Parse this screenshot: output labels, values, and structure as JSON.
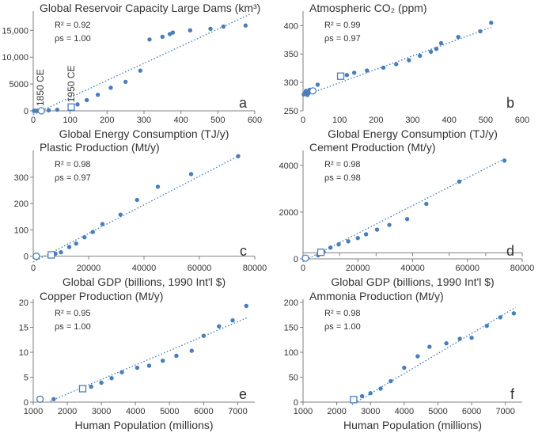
{
  "chart_data": [
    {
      "type": "scatter",
      "panel_letter": "a",
      "title": "Global Reservoir Capacity Large Dams (km³)",
      "xlabel": "Global Energy Consumption (TJ/y)",
      "ylabel": "",
      "stats": [
        "R² = 0.92",
        "ρs = 1.00"
      ],
      "xlim": [
        0,
        600
      ],
      "ylim": [
        0,
        18000
      ],
      "xticks": [
        0,
        100,
        200,
        300,
        400,
        500,
        600
      ],
      "xtick_labels": [
        "0",
        "100",
        "200",
        "300",
        "400",
        "500",
        "600"
      ],
      "yticks": [
        0,
        5000,
        10000,
        15000
      ],
      "ytick_labels": [
        "0",
        "5000",
        "10,000",
        "15,000"
      ],
      "annotations": [
        {
          "text": "1850 CE",
          "x": 19,
          "y": 0
        },
        {
          "text": "1950 CE",
          "x": 103,
          "y": 700
        }
      ],
      "points": [
        [
          2,
          0
        ],
        [
          5,
          0
        ],
        [
          8,
          0
        ],
        [
          12,
          0
        ],
        [
          15,
          0
        ],
        [
          20,
          0
        ],
        [
          25,
          0
        ],
        [
          42,
          100
        ],
        [
          65,
          200
        ],
        [
          120,
          1200
        ],
        [
          145,
          2000
        ],
        [
          175,
          3000
        ],
        [
          210,
          4300
        ],
        [
          250,
          5400
        ],
        [
          290,
          7500
        ],
        [
          315,
          13300
        ],
        [
          350,
          13800
        ],
        [
          370,
          14300
        ],
        [
          378,
          14600
        ],
        [
          425,
          15000
        ],
        [
          480,
          15300
        ],
        [
          515,
          15700
        ],
        [
          575,
          15900
        ]
      ],
      "open_circles": [
        [
          22,
          0
        ]
      ],
      "open_squares": [
        [
          103,
          700
        ]
      ],
      "trendline": [
        [
          0,
          -700
        ],
        [
          590,
          18100
        ]
      ]
    },
    {
      "type": "scatter",
      "panel_letter": "b",
      "title": "Atmospheric CO₂ (ppm)",
      "xlabel": "Global Energy Consumption (TJ/y)",
      "ylabel": "",
      "stats": [
        "R² = 0.99",
        "ρs = 0.97"
      ],
      "xlim": [
        0,
        600
      ],
      "ylim": [
        250,
        420
      ],
      "xticks": [
        0,
        100,
        200,
        300,
        400,
        500,
        600
      ],
      "xtick_labels": [
        "0",
        "100",
        "200",
        "300",
        "400",
        "500",
        "600"
      ],
      "yticks": [
        250,
        300,
        350,
        400
      ],
      "ytick_labels": [
        "250",
        "300",
        "350",
        "400"
      ],
      "annotations": [],
      "points": [
        [
          2,
          279
        ],
        [
          4,
          280
        ],
        [
          6,
          282
        ],
        [
          8,
          285
        ],
        [
          10,
          283
        ],
        [
          12,
          278
        ],
        [
          15,
          281
        ],
        [
          18,
          287
        ],
        [
          40,
          296
        ],
        [
          120,
          313
        ],
        [
          140,
          317
        ],
        [
          175,
          321
        ],
        [
          220,
          326
        ],
        [
          255,
          332
        ],
        [
          290,
          339
        ],
        [
          320,
          347
        ],
        [
          350,
          354
        ],
        [
          365,
          359
        ],
        [
          378,
          369
        ],
        [
          425,
          380
        ],
        [
          485,
          390
        ],
        [
          515,
          405
        ]
      ],
      "open_circles": [
        [
          27,
          285
        ]
      ],
      "open_squares": [
        [
          103,
          311
        ]
      ],
      "trendline": [
        [
          0,
          276
        ],
        [
          515,
          397
        ]
      ]
    },
    {
      "type": "scatter",
      "panel_letter": "c",
      "title": "Plastic Production (Mt/y)",
      "xlabel": "Global GDP (billions, 1990 Int'l $)",
      "ylabel": "",
      "stats": [
        "R² = 0.98",
        "ρs = 0.97"
      ],
      "xlim": [
        0,
        80000
      ],
      "ylim": [
        -10,
        390
      ],
      "xticks": [
        0,
        20000,
        40000,
        60000,
        80000
      ],
      "xtick_labels": [
        "0",
        "20000",
        "40000",
        "60000",
        "80000"
      ],
      "yticks": [
        0,
        100,
        200,
        300
      ],
      "ytick_labels": [
        "0",
        "100",
        "200",
        "300"
      ],
      "annotations": [],
      "points": [
        [
          800,
          0
        ],
        [
          1500,
          0
        ],
        [
          7000,
          5
        ],
        [
          8000,
          10
        ],
        [
          10000,
          15
        ],
        [
          13000,
          35
        ],
        [
          15500,
          48
        ],
        [
          18500,
          72
        ],
        [
          21500,
          92
        ],
        [
          25000,
          122
        ],
        [
          31500,
          158
        ],
        [
          37500,
          214
        ],
        [
          45000,
          264
        ],
        [
          57000,
          312
        ],
        [
          74000,
          380
        ]
      ],
      "open_circles": [
        [
          1100,
          0
        ]
      ],
      "open_squares": [
        [
          6500,
          5
        ]
      ],
      "trendline": [
        [
          0,
          -22
        ],
        [
          74000,
          380
        ]
      ]
    },
    {
      "type": "scatter",
      "panel_letter": "d",
      "title": "Cement Production (Mt/y)",
      "xlabel": "Global GDP (billions, 1990 Int'l $)",
      "ylabel": "",
      "stats": [
        "R² = 0.98",
        "ρs = 0.98"
      ],
      "xlim": [
        0,
        80000
      ],
      "ylim": [
        0,
        4500
      ],
      "xticks": [
        0,
        20000,
        40000,
        60000,
        80000
      ],
      "xtick_labels": [
        "0",
        "20000",
        "40000",
        "60000",
        "80000"
      ],
      "yticks": [
        0,
        2000,
        4000
      ],
      "ytick_labels": [
        "0",
        "2000",
        "4000"
      ],
      "annotations": [],
      "points": [
        [
          500,
          10
        ],
        [
          1200,
          30
        ],
        [
          5500,
          150
        ],
        [
          7000,
          250
        ],
        [
          7500,
          300
        ],
        [
          10000,
          480
        ],
        [
          13000,
          620
        ],
        [
          16500,
          750
        ],
        [
          20000,
          890
        ],
        [
          23000,
          1050
        ],
        [
          27000,
          1250
        ],
        [
          31500,
          1450
        ],
        [
          38000,
          1700
        ],
        [
          45000,
          2350
        ],
        [
          57000,
          3300
        ],
        [
          73500,
          4200
        ]
      ],
      "open_circles": [
        [
          900,
          30
        ]
      ],
      "open_squares": [
        [
          6500,
          280
        ]
      ],
      "trendline": [
        [
          0,
          -100
        ],
        [
          74000,
          4300
        ]
      ]
    },
    {
      "type": "scatter",
      "panel_letter": "e",
      "title": "Copper Production (Mt/y)",
      "xlabel": "Human Population (millions)",
      "ylabel": "",
      "stats": [
        "R² = 0.95",
        "ρs = 1.00"
      ],
      "xlim": [
        1000,
        7500
      ],
      "ylim": [
        0,
        20
      ],
      "xticks": [
        1000,
        2000,
        3000,
        4000,
        5000,
        6000,
        7000
      ],
      "xtick_labels": [
        "1000",
        "2000",
        "3000",
        "4000",
        "5000",
        "6000",
        "7000"
      ],
      "yticks": [
        0,
        5,
        10,
        15,
        20
      ],
      "ytick_labels": [
        "0",
        "5",
        "10",
        "15",
        "20"
      ],
      "annotations": [],
      "points": [
        [
          1600,
          0.6
        ],
        [
          2700,
          3.1
        ],
        [
          3000,
          3.9
        ],
        [
          3300,
          4.8
        ],
        [
          3600,
          6.0
        ],
        [
          4050,
          6.9
        ],
        [
          4400,
          7.3
        ],
        [
          4800,
          8.3
        ],
        [
          5200,
          9.3
        ],
        [
          5650,
          10.3
        ],
        [
          6000,
          13.3
        ],
        [
          6450,
          15.2
        ],
        [
          6850,
          16.4
        ],
        [
          7250,
          19.3
        ]
      ],
      "open_circles": [
        [
          1200,
          0.6
        ]
      ],
      "open_squares": [
        [
          2450,
          2.7
        ]
      ],
      "trendline": [
        [
          1500,
          0.2
        ],
        [
          7300,
          17.0
        ]
      ]
    },
    {
      "type": "scatter",
      "panel_letter": "f",
      "title": "Ammonia Production (Mt/y)",
      "xlabel": "Human Population (millions)",
      "ylabel": "",
      "stats": [
        "R² = 0.98",
        "ρs = 1.00"
      ],
      "xlim": [
        1000,
        7500
      ],
      "ylim": [
        0,
        200
      ],
      "xticks": [
        1000,
        2000,
        3000,
        4000,
        5000,
        6000,
        7000
      ],
      "xtick_labels": [
        "1000",
        "2000",
        "3000",
        "4000",
        "5000",
        "6000",
        "7000"
      ],
      "yticks": [
        0,
        50,
        100,
        150,
        200
      ],
      "ytick_labels": [
        "0",
        "50",
        "100",
        "150",
        "200"
      ],
      "annotations": [],
      "points": [
        [
          2750,
          12
        ],
        [
          3000,
          18
        ],
        [
          3300,
          27
        ],
        [
          3600,
          42
        ],
        [
          4000,
          69
        ],
        [
          4400,
          92
        ],
        [
          4750,
          111
        ],
        [
          5250,
          118
        ],
        [
          5650,
          127
        ],
        [
          6000,
          129
        ],
        [
          6450,
          153
        ],
        [
          6850,
          170
        ],
        [
          7250,
          178
        ]
      ],
      "open_circles": [],
      "open_squares": [
        [
          2500,
          5
        ]
      ],
      "trendline": [
        [
          2450,
          -5
        ],
        [
          7300,
          190
        ]
      ]
    }
  ],
  "colors": {
    "marker": "#4a7ebb",
    "trend": "#4a7ebb",
    "axis": "#7f7f7f",
    "text": "#333333"
  }
}
